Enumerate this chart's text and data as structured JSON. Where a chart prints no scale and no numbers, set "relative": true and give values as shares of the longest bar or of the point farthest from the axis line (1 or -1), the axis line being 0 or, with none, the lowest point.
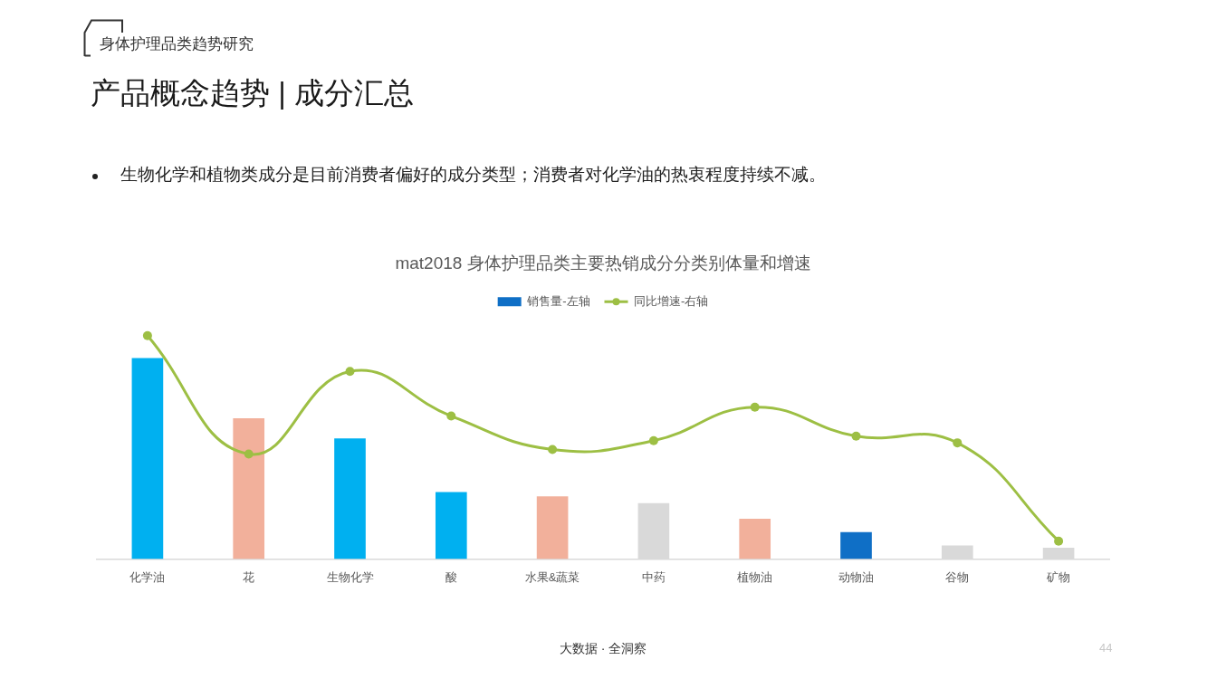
{
  "chart_data": {
    "type": "bar",
    "title": "mat2018 身体护理品类主要热销成分分类别体量和增速",
    "categories": [
      "化学油",
      "花",
      "生物化学",
      "酸",
      "水果&蔬菜",
      "中药",
      "植物油",
      "动物油",
      "谷物",
      "矿物"
    ],
    "series": [
      {
        "name": "销售量-左轴",
        "color": "#0f6fc6",
        "colors": [
          "#00b0f0",
          "#f2b09b",
          "#00b0f0",
          "#00b0f0",
          "#f2b09b",
          "#d9d9d9",
          "#f2b09b",
          "#0f6fc6",
          "#d9d9d9",
          "#d9d9d9"
        ],
        "values": [
          0.9,
          0.63,
          0.54,
          0.3,
          0.28,
          0.25,
          0.18,
          0.12,
          0.06,
          0.05
        ]
      },
      {
        "name": "同比增速-右轴",
        "type": "line",
        "color": "#9dbf44",
        "values": [
          1,
          0.47,
          0.84,
          0.64,
          0.49,
          0.53,
          0.68,
          0.55,
          0.52,
          0.08
        ]
      }
    ],
    "relative": true,
    "legend": "top",
    "grid": false,
    "marker": "circle",
    "annotations": [
      "身体护理品类趋势研究",
      "产品概念趋势 | 成分汇总",
      "生物化学和植物类成分是目前消费者偏好的成分类型；消费者对化学油的热衷程度持续不减。",
      "大数据 · 全洞察",
      "44"
    ]
  }
}
